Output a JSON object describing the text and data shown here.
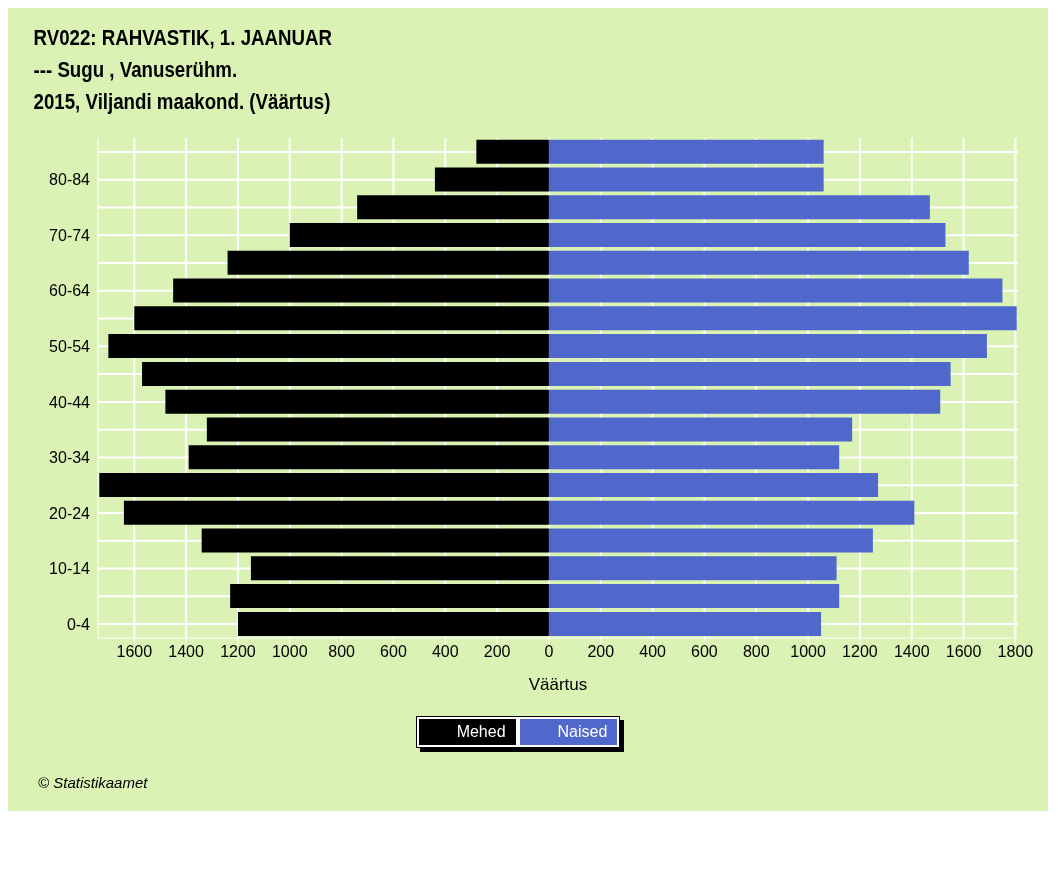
{
  "chart_data": {
    "type": "bar",
    "orientation": "horizontal",
    "stacked": true,
    "title": "RV022: RAHVASTIK, 1. JAANUAR",
    "subtitle": "--- Sugu , Vanuserühm.\n2015, Viljandi maakond. (Väärtus)",
    "xlabel": "Väärtus",
    "categories": [
      null,
      "80-84",
      null,
      "70-74",
      null,
      "60-64",
      null,
      "50-54",
      null,
      "40-44",
      null,
      "30-34",
      null,
      "20-24",
      null,
      "10-14",
      null,
      "0-4"
    ],
    "series": [
      {
        "name": "Mehed",
        "color": "#000000",
        "values": [
          -280,
          -440,
          -740,
          -1000,
          -1240,
          -1450,
          -1600,
          -1700,
          -1570,
          -1480,
          -1320,
          -1390,
          -1735,
          -1640,
          -1340,
          -1150,
          -1230,
          -1200
        ]
      },
      {
        "name": "Naised",
        "color": "#5068cc",
        "values": [
          1060,
          1060,
          1470,
          1530,
          1620,
          1750,
          1805,
          1690,
          1550,
          1510,
          1170,
          1120,
          1270,
          1410,
          1250,
          1110,
          1120,
          1050
        ]
      }
    ],
    "xlim": [
      -1740,
      1810
    ],
    "xticks": [
      {
        "value": -1600,
        "label": "1600"
      },
      {
        "value": -1400,
        "label": "1400"
      },
      {
        "value": -1200,
        "label": "1200"
      },
      {
        "value": -1000,
        "label": "1000"
      },
      {
        "value": -800,
        "label": "800"
      },
      {
        "value": -600,
        "label": "600"
      },
      {
        "value": -400,
        "label": "400"
      },
      {
        "value": -200,
        "label": "200"
      },
      0,
      200,
      400,
      600,
      800,
      1000,
      1200,
      1400,
      1600,
      1800
    ],
    "grid": true,
    "legend": "bottom",
    "annotations": [
      "© Statistikaamet"
    ]
  }
}
